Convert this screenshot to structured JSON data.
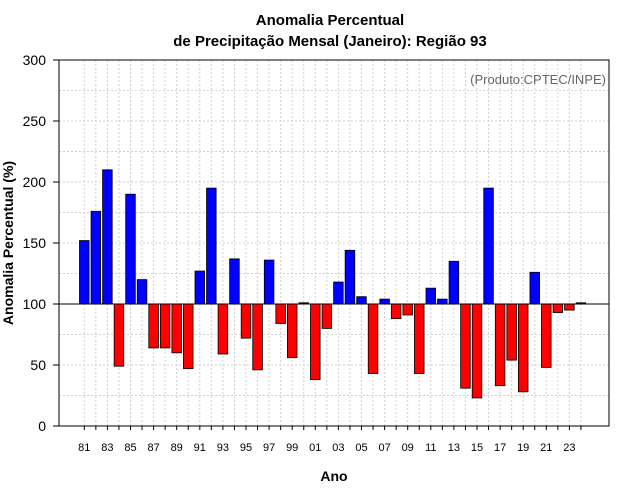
{
  "chart_data": {
    "type": "bar",
    "title": [
      "Anomalia Percentual",
      "de Precipitação Mensal (Janeiro): Região 93"
    ],
    "annotation": "(Produto:CPTEC/INPE)",
    "xlabel": "Ano",
    "ylabel": "Anomalia Percentual (%)",
    "ylim": [
      0,
      300
    ],
    "yticks": [
      0,
      50,
      100,
      150,
      200,
      250,
      300
    ],
    "baseline": 100,
    "grid": true,
    "colors": {
      "above": "#0000ff",
      "below": "#ff0000"
    },
    "categories": [
      "81",
      "82",
      "83",
      "84",
      "85",
      "86",
      "87",
      "88",
      "89",
      "90",
      "91",
      "92",
      "93",
      "94",
      "95",
      "96",
      "97",
      "98",
      "99",
      "00",
      "01",
      "02",
      "03",
      "04",
      "05",
      "06",
      "07",
      "08",
      "09",
      "10",
      "11",
      "12",
      "13",
      "14",
      "15",
      "16",
      "17",
      "18",
      "19",
      "20",
      "21",
      "22",
      "23",
      "24"
    ],
    "xtick_labels": [
      "81",
      "83",
      "85",
      "87",
      "89",
      "91",
      "93",
      "95",
      "97",
      "99",
      "01",
      "03",
      "05",
      "07",
      "09",
      "11",
      "13",
      "15",
      "17",
      "19",
      "21",
      "23"
    ],
    "values": [
      152,
      176,
      210,
      49,
      190,
      120,
      64,
      64,
      60,
      47,
      127,
      195,
      59,
      137,
      72,
      46,
      136,
      84,
      56,
      101,
      38,
      80,
      118,
      144,
      106,
      43,
      104,
      88,
      91,
      43,
      113,
      104,
      135,
      31,
      23,
      195,
      33,
      54,
      28,
      126,
      48,
      93,
      95,
      101
    ]
  }
}
